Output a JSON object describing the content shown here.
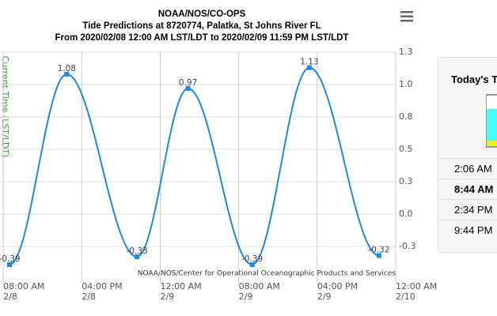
{
  "chart_data": {
    "type": "line",
    "title": [
      "NOAA/NOS/CO-OPS",
      "Tide Predictions at 8720774, Palatka, St Johns River FL",
      "From 2020/02/08 12:00 AM LST/LDT to 2020/02/09 11:59 PM LST/LDT"
    ],
    "x": [
      "2020-02-08T08:38",
      "2020-02-08T14:28",
      "2020-02-08T21:38",
      "2020-02-09T02:50",
      "2020-02-09T09:22",
      "2020-02-09T15:12",
      "2020-02-09T22:18"
    ],
    "series": [
      {
        "name": "Predictions",
        "color": "#1e88e5",
        "values": [
          -0.39,
          1.08,
          -0.33,
          0.97,
          -0.39,
          1.13,
          -0.32
        ]
      }
    ],
    "xlim": [
      "2020-02-08T07:40",
      "2020-02-10T00:00"
    ],
    "xticks": [
      {
        "value": "2020-02-08T08:00",
        "label": [
          "08:00 AM",
          "2/8"
        ]
      },
      {
        "value": "2020-02-08T16:00",
        "label": [
          "04:00 PM",
          "2/8"
        ]
      },
      {
        "value": "2020-02-09T00:00",
        "label": [
          "12:00 AM",
          "2/9"
        ]
      },
      {
        "value": "2020-02-09T08:00",
        "label": [
          "08:00 AM",
          "2/9"
        ]
      },
      {
        "value": "2020-02-09T16:00",
        "label": [
          "04:00 PM",
          "2/9"
        ]
      },
      {
        "value": "2020-02-10T00:00",
        "label": [
          "12:00 AM",
          "2/10"
        ]
      }
    ],
    "ylim": [
      -0.5,
      1.25
    ],
    "yticks": [
      {
        "value": 1.25,
        "label": "1.3"
      },
      {
        "value": 1.0,
        "label": "1.0"
      },
      {
        "value": 0.75,
        "label": "0.8"
      },
      {
        "value": 0.5,
        "label": "0.5"
      },
      {
        "value": 0.25,
        "label": "0.3"
      },
      {
        "value": 0,
        "label": "0.0"
      },
      {
        "value": -0.25,
        "label": "-0.3"
      }
    ],
    "grid": true,
    "current_time_label": "Current Time (LST/LDT)",
    "credits": "NOAA/NOS/Center for Operational Oceanographic Products and Services"
  },
  "side_panel": {
    "title": "Today's Tides",
    "times": [
      "2:06 AM",
      "8:44 AM",
      "2:34 PM",
      "9:44 PM"
    ],
    "current_index": 1
  }
}
